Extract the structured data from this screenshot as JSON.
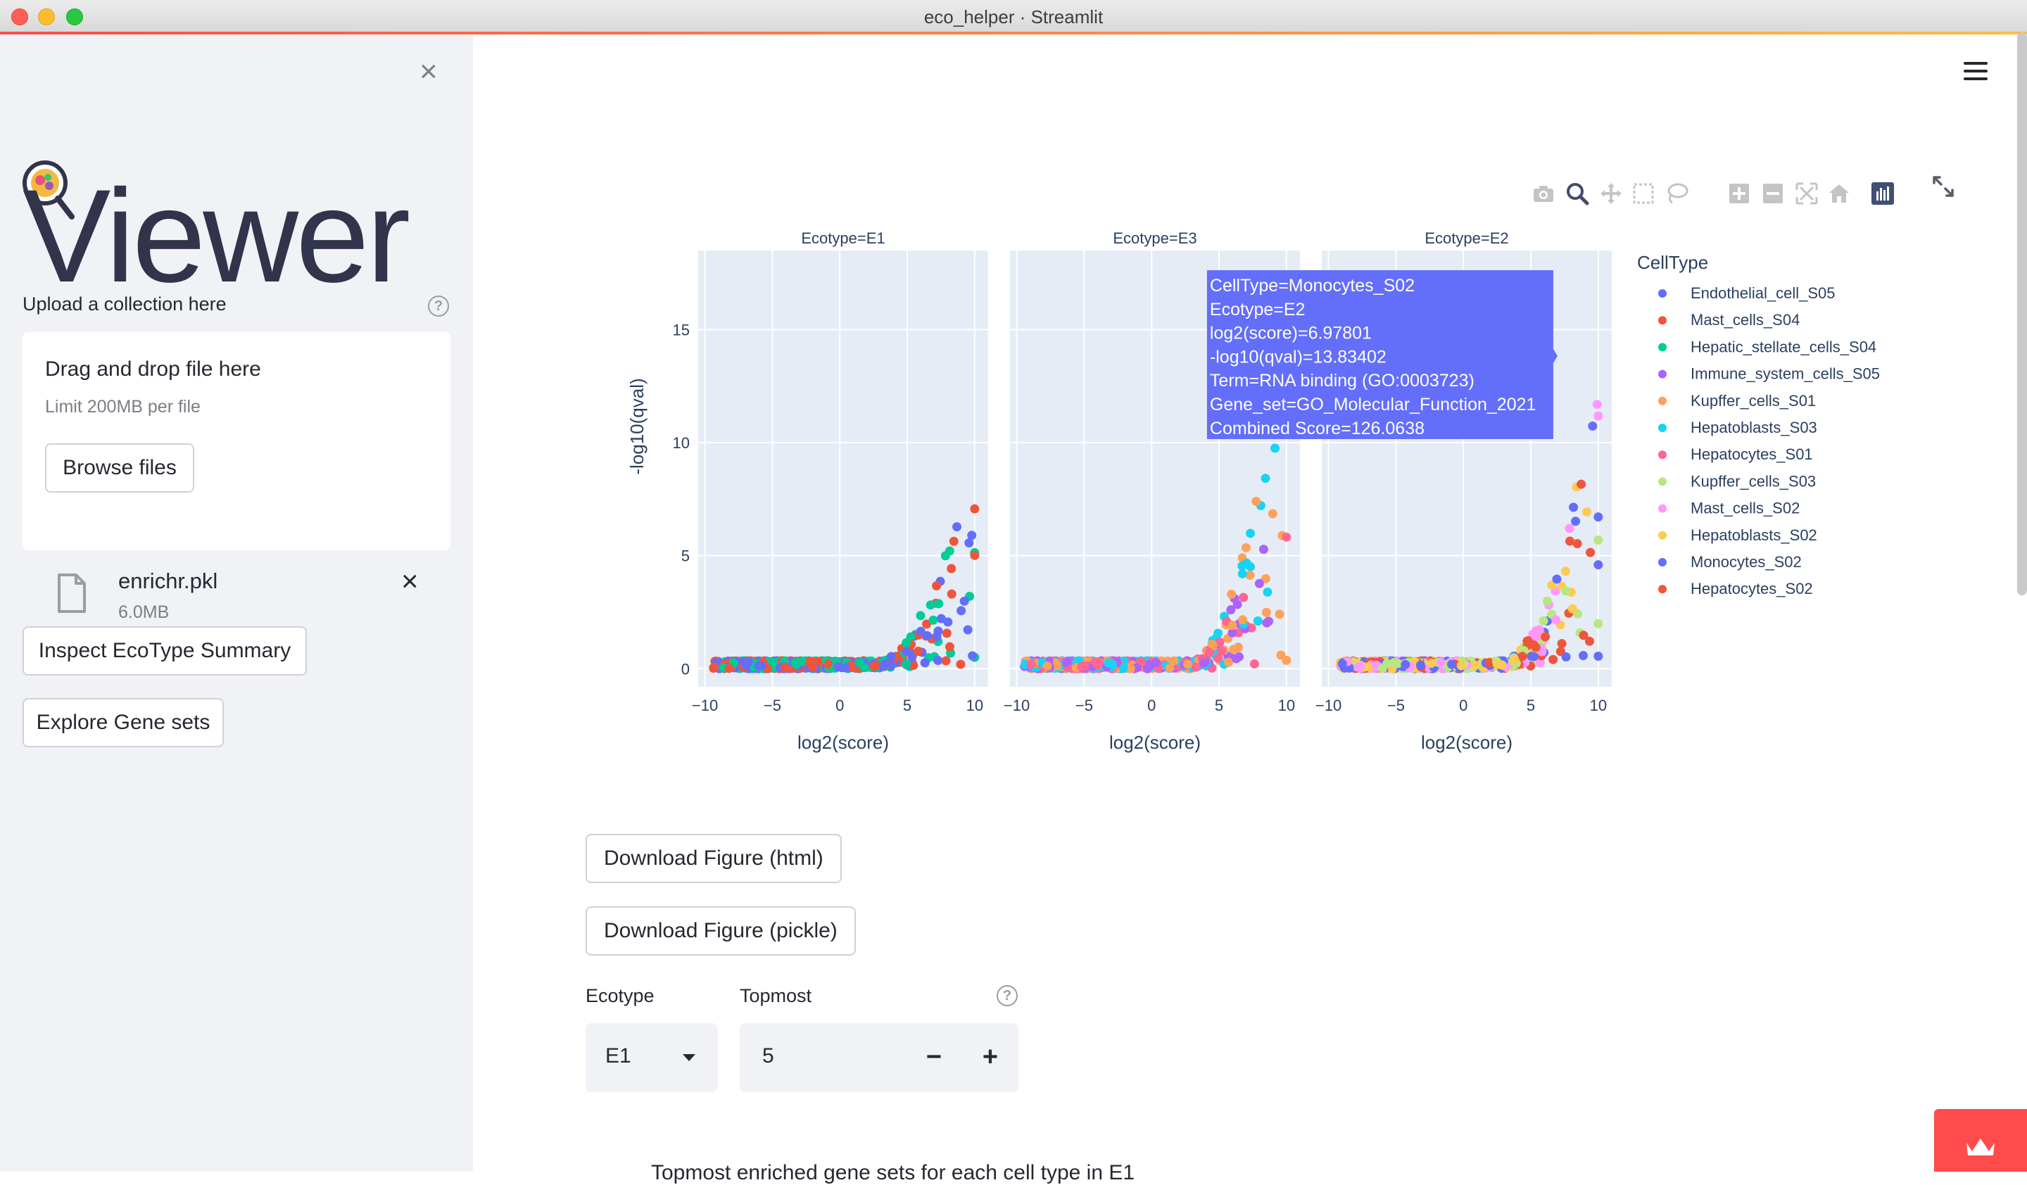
{
  "window": {
    "title": "eco_helper · Streamlit"
  },
  "sidebar": {
    "logo_text": "Viewer",
    "upload_label": "Upload a collection here",
    "dropzone": {
      "title": "Drag and drop file here",
      "limit": "Limit 200MB per file",
      "browse_label": "Browse files"
    },
    "file": {
      "name": "enrichr.pkl",
      "size": "6.0MB"
    },
    "buttons": {
      "inspect": "Inspect EcoType Summary",
      "explore": "Explore Gene sets"
    }
  },
  "icons": {
    "modebar": [
      "camera-icon",
      "zoom-icon",
      "pan-icon",
      "box-select-icon",
      "lasso-select-icon",
      "zoom-in-icon",
      "zoom-out-icon",
      "autoscale-icon",
      "reset-axes-icon",
      "plotly-logo-icon"
    ],
    "accent": "#ff4b4b"
  },
  "chart_data": {
    "type": "scatter",
    "xlabel": "log2(score)",
    "ylabel": "-log10(qval)",
    "xlim": [
      -10.5,
      11
    ],
    "ylim": [
      -0.8,
      18.5
    ],
    "xticks": [
      "−10",
      "−5",
      "0",
      "5",
      "10"
    ],
    "yticks": [
      "0",
      "5",
      "10",
      "15"
    ],
    "facets": [
      "Ecotype=E1",
      "Ecotype=E3",
      "Ecotype=E2"
    ],
    "legend_title": "CellType",
    "legend_position": "right",
    "series": [
      {
        "name": "Endothelial_cell_S05",
        "color": "#636efa"
      },
      {
        "name": "Mast_cells_S04",
        "color": "#ef553b"
      },
      {
        "name": "Hepatic_stellate_cells_S04",
        "color": "#00cc96"
      },
      {
        "name": "Immune_system_cells_S05",
        "color": "#ab63fa"
      },
      {
        "name": "Kupffer_cells_S01",
        "color": "#ffa15a"
      },
      {
        "name": "Hepatoblasts_S03",
        "color": "#19d3f3"
      },
      {
        "name": "Hepatocytes_S01",
        "color": "#ff6692"
      },
      {
        "name": "Kupffer_cells_S03",
        "color": "#b6e880"
      },
      {
        "name": "Mast_cells_S02",
        "color": "#ff97ff"
      },
      {
        "name": "Hepatoblasts_S02",
        "color": "#fecb52"
      },
      {
        "name": "Monocytes_S02",
        "color": "#636efa"
      },
      {
        "name": "Hepatocytes_S02",
        "color": "#ef553b"
      }
    ],
    "facet_series": [
      [
        "Endothelial_cell_S05",
        "Hepatic_stellate_cells_S04",
        "Mast_cells_S04"
      ],
      [
        "Hepatoblasts_S03",
        "Hepatocytes_S01",
        "Immune_system_cells_S05",
        "Kupffer_cells_S01"
      ],
      [
        "Hepatocytes_S02",
        "Monocytes_S02",
        "Hepatoblasts_S02",
        "Mast_cells_S02",
        "Kupffer_cells_S03"
      ]
    ],
    "tooltip": {
      "facet": 2,
      "point": [
        6.97801,
        13.83402
      ],
      "lines": [
        "CellType=Monocytes_S02",
        "Ecotype=E2",
        "log2(score)=6.97801",
        "-log10(qval)=13.83402",
        "Term=RNA binding (GO:0003723)",
        "Gene_set=GO_Molecular_Function_2021",
        "Combined Score=126.0638"
      ],
      "color": "#636efa"
    }
  },
  "main": {
    "download_html": "Download Figure (html)",
    "download_pickle": "Download Figure (pickle)",
    "ecotype_label": "Ecotype",
    "ecotype_value": "E1",
    "topmost_label": "Topmost",
    "topmost_value": "5",
    "minus": "−",
    "plus": "+",
    "bottom_text": "Topmost enriched gene sets for each cell type in E1"
  }
}
